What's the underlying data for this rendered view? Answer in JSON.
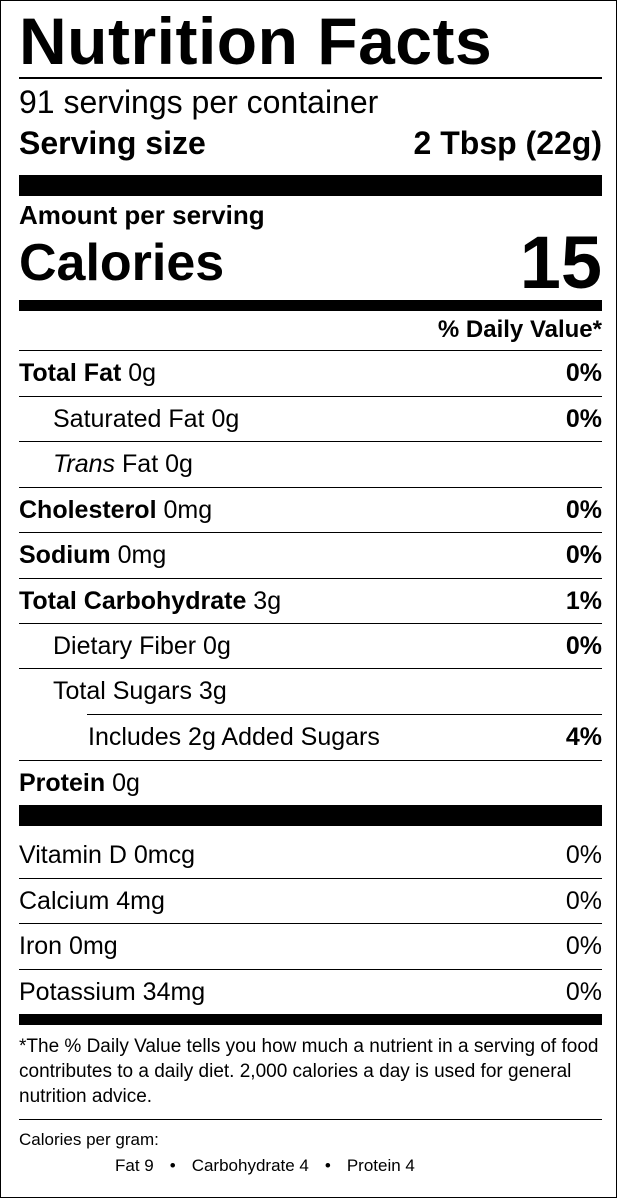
{
  "title": "Nutrition Facts",
  "servings_per_container": "91 servings per container",
  "serving_size": {
    "label": "Serving size",
    "value": "2 Tbsp (22g)"
  },
  "amount_per_serving": "Amount per serving",
  "calories": {
    "label": "Calories",
    "value": "15"
  },
  "daily_value_header": "% Daily Value*",
  "nutrients": [
    {
      "name": "Total Fat",
      "amount": "0g",
      "dv": "0%"
    },
    {
      "name": "Saturated Fat",
      "amount": "0g",
      "dv": "0%"
    },
    {
      "name_italic": "Trans",
      "name": "Fat",
      "amount": "0g",
      "dv": ""
    },
    {
      "name": "Cholesterol",
      "amount": "0mg",
      "dv": "0%"
    },
    {
      "name": "Sodium",
      "amount": "0mg",
      "dv": "0%"
    },
    {
      "name": "Total Carbohydrate",
      "amount": "3g",
      "dv": "1%"
    },
    {
      "name": "Dietary Fiber",
      "amount": "0g",
      "dv": "0%"
    },
    {
      "name": "Total Sugars",
      "amount": "3g",
      "dv": ""
    },
    {
      "name": "Includes 2g Added Sugars",
      "amount": "",
      "dv": "4%"
    },
    {
      "name": "Protein",
      "amount": "0g",
      "dv": ""
    }
  ],
  "vitamins": [
    {
      "name": "Vitamin D",
      "amount": "0mcg",
      "dv": "0%"
    },
    {
      "name": "Calcium",
      "amount": "4mg",
      "dv": "0%"
    },
    {
      "name": "Iron",
      "amount": "0mg",
      "dv": "0%"
    },
    {
      "name": "Potassium",
      "amount": "34mg",
      "dv": "0%"
    }
  ],
  "footnote": "*The % Daily Value tells you how much a nutrient in a serving of food contributes to a daily diet. 2,000 calories a day is used for general nutrition advice.",
  "calories_per_gram": {
    "label": "Calories per gram:",
    "fat": "Fat 9",
    "carbohydrate": "Carbohydrate 4",
    "protein": "Protein 4",
    "separator": "•"
  }
}
